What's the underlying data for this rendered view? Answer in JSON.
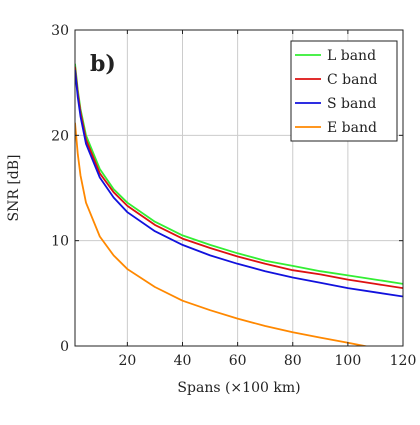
{
  "chart_data": {
    "type": "line",
    "panel_label": "b)",
    "xlabel": "Spans (×100 km)",
    "ylabel": "SNR [dB]",
    "xlim": [
      1,
      120
    ],
    "ylim": [
      0,
      30
    ],
    "xticks": [
      20,
      40,
      60,
      80,
      100,
      120
    ],
    "yticks": [
      0,
      10,
      20,
      30
    ],
    "grid": true,
    "legend_position": "top-right",
    "x": [
      1,
      2,
      3,
      5,
      10,
      15,
      20,
      30,
      40,
      50,
      60,
      70,
      80,
      90,
      100,
      110,
      120
    ],
    "series": [
      {
        "name": "L band",
        "color": "#33ee33",
        "values": [
          26.8,
          24.3,
          22.5,
          20.0,
          16.8,
          14.9,
          13.6,
          11.8,
          10.5,
          9.6,
          8.8,
          8.1,
          7.6,
          7.1,
          6.7,
          6.3,
          5.9
        ]
      },
      {
        "name": "C band",
        "color": "#dd1111",
        "values": [
          26.5,
          24.0,
          22.2,
          19.6,
          16.4,
          14.6,
          13.3,
          11.5,
          10.2,
          9.3,
          8.5,
          7.8,
          7.2,
          6.8,
          6.3,
          5.9,
          5.5
        ]
      },
      {
        "name": "S band",
        "color": "#1111dd",
        "values": [
          26.2,
          23.6,
          21.8,
          19.2,
          16.0,
          14.1,
          12.7,
          10.9,
          9.6,
          8.6,
          7.8,
          7.1,
          6.5,
          6.0,
          5.5,
          5.1,
          4.7
        ]
      },
      {
        "name": "E band",
        "color": "#ff8800",
        "values": [
          21.2,
          18.2,
          16.2,
          13.6,
          10.4,
          8.6,
          7.3,
          5.6,
          4.3,
          3.4,
          2.6,
          1.9,
          1.3,
          0.8,
          0.3,
          -0.2,
          -0.6
        ]
      }
    ]
  }
}
